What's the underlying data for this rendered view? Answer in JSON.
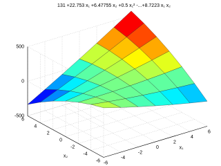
{
  "chart_data": {
    "type": "surface",
    "title": "131 +22.753 x₁ +6.47755 x₂ +0.5 x₁² -...+8.7223 x₁ x₂",
    "xlabel": "x₁",
    "ylabel": "x₂",
    "x": [
      -6,
      -4,
      -2,
      0,
      2,
      4,
      6
    ],
    "y": [
      -6,
      -4,
      -2,
      0,
      2,
      4,
      6
    ],
    "z": [
      [
        216,
        146,
        81,
        20,
        -37,
        -90,
        -139
      ],
      [
        164,
        130,
        99,
        73,
        51,
        33,
        18
      ],
      [
        96,
        97,
        101,
        110,
        123,
        139,
        160
      ],
      [
        13,
        48,
        88,
        131,
        179,
        230,
        286
      ],
      [
        -87,
        -17,
        58,
        136,
        218,
        305,
        395
      ],
      [
        -203,
        -98,
        12,
        125,
        242,
        364,
        489
      ],
      [
        -335,
        -194,
        -50,
        98,
        250,
        406,
        566
      ]
    ],
    "xlim": [
      -6,
      6
    ],
    "ylim": [
      -6,
      6
    ],
    "zlim": [
      -500,
      500
    ],
    "xticks": [
      -6,
      -4,
      -2,
      0,
      2,
      4,
      6
    ],
    "yticks": [
      -6,
      -4,
      -2,
      0,
      2,
      4,
      6
    ],
    "zticks": [
      -500,
      0,
      500
    ],
    "colormap": "jet",
    "grid": true
  }
}
